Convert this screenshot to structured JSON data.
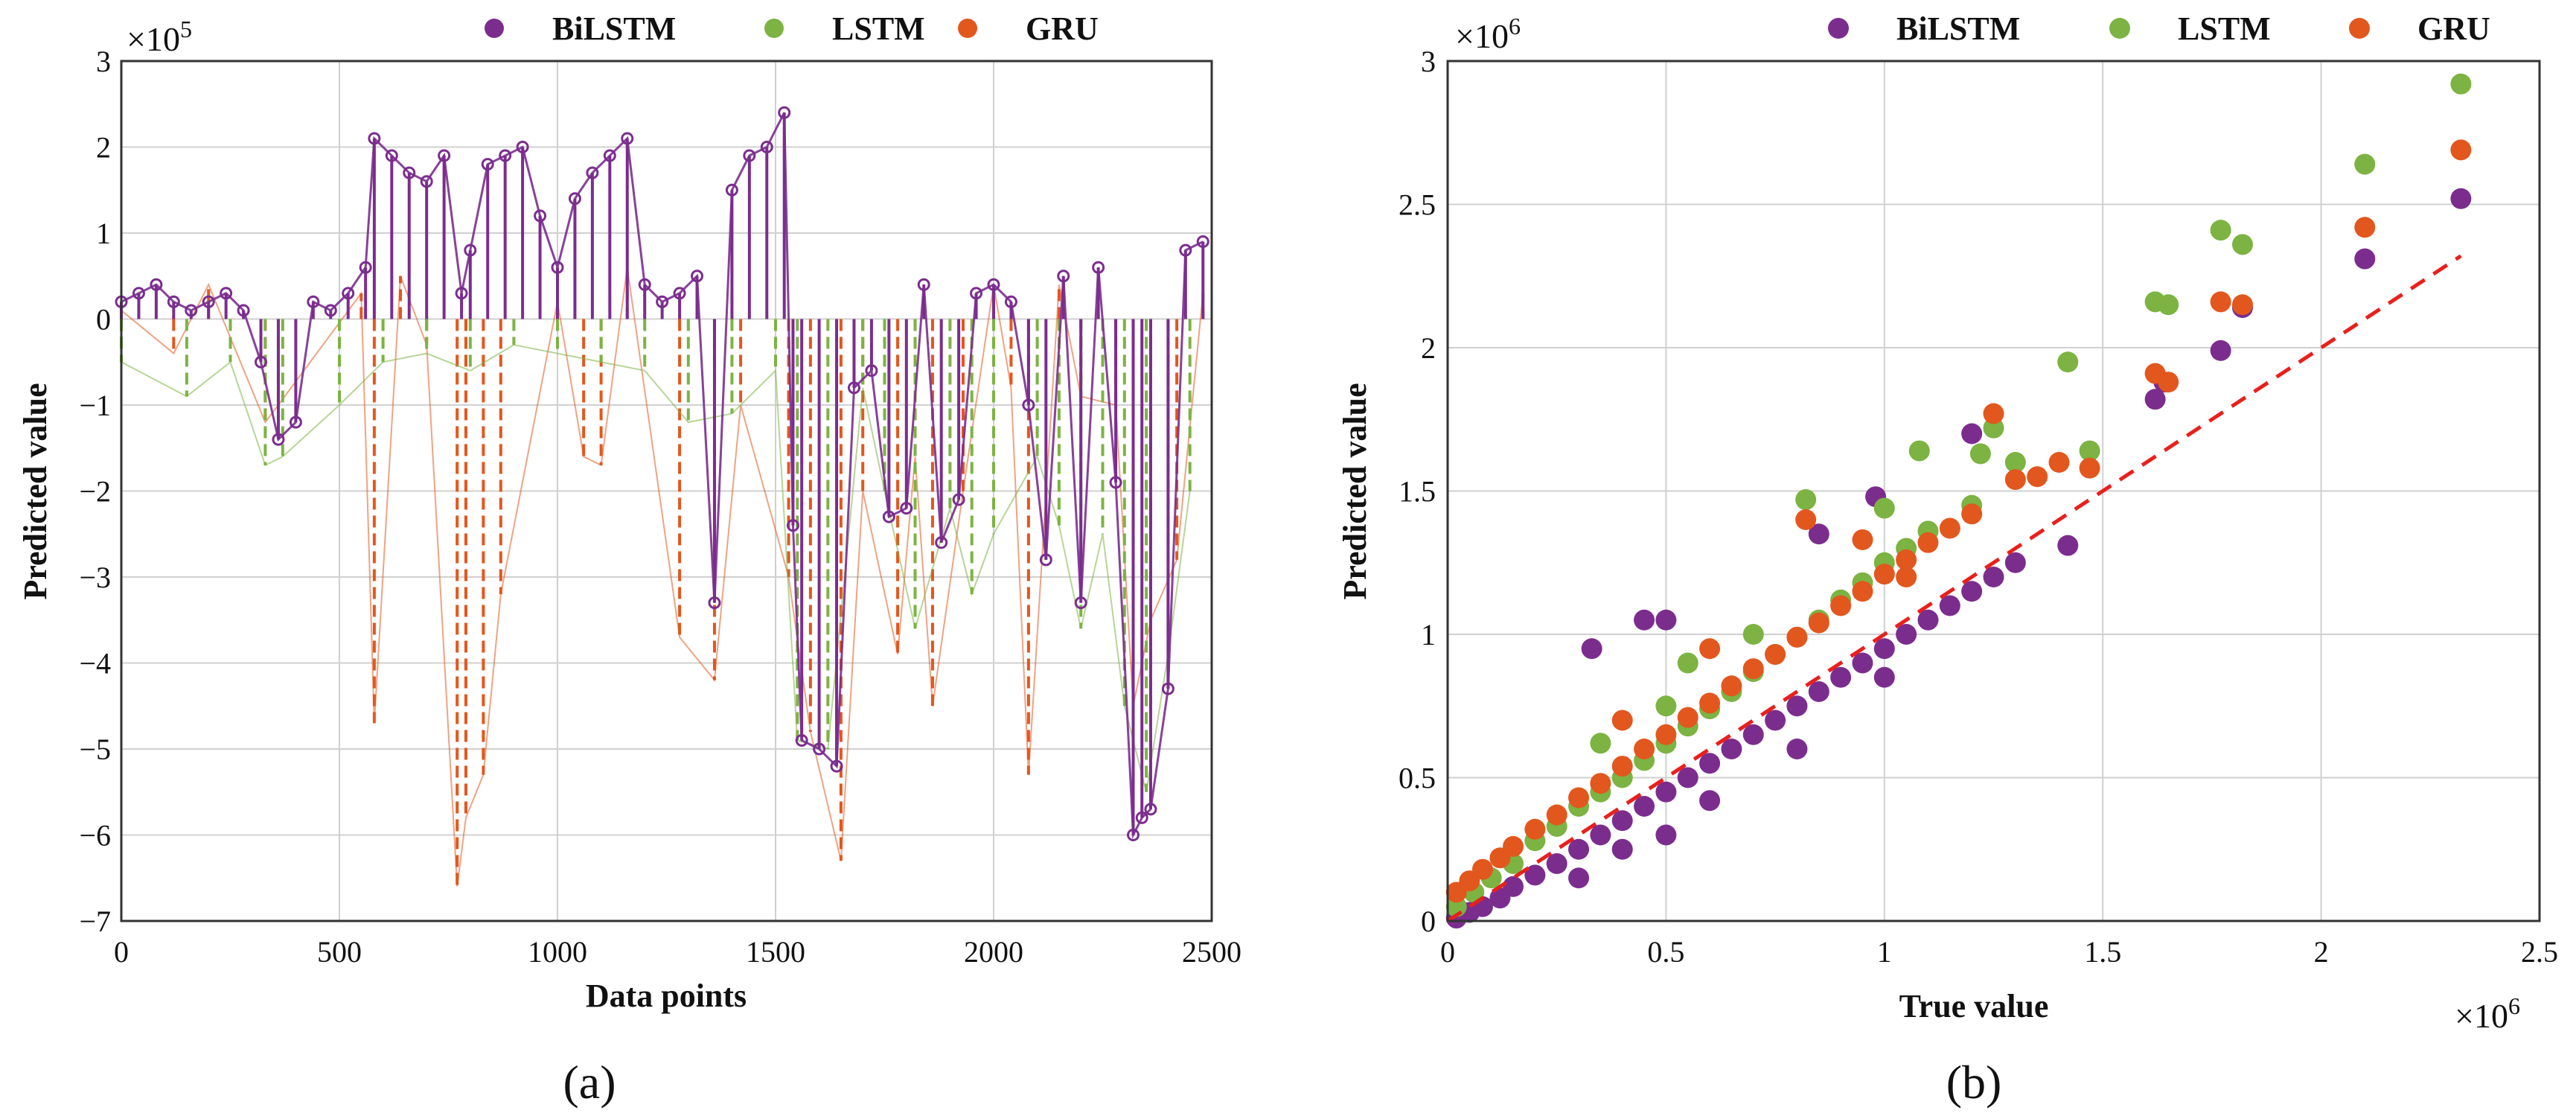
{
  "chart_data": [
    {
      "type": "line",
      "panel_label": "(a)",
      "xlabel": "Data points",
      "ylabel": "Predicted value",
      "y_multiplier_label": "×10",
      "y_multiplier_exp": "5",
      "xlim": [
        0,
        2500
      ],
      "ylim": [
        -7,
        3
      ],
      "xticks": [
        0,
        500,
        1000,
        1500,
        2000,
        2500
      ],
      "yticks": [
        -7,
        -6,
        -5,
        -4,
        -3,
        -2,
        -1,
        0,
        1,
        2,
        3
      ],
      "grid": true,
      "legend_position": "top",
      "series_order": [
        "GRU",
        "LSTM",
        "BiLSTM"
      ],
      "series": [
        {
          "name": "GRU",
          "color": "#E2571E",
          "style": "dashed stems",
          "x": [
            0,
            120,
            200,
            330,
            360,
            550,
            580,
            640,
            700,
            770,
            790,
            830,
            870,
            1000,
            1060,
            1100,
            1160,
            1280,
            1360,
            1420,
            1530,
            1580,
            1650,
            1700,
            1780,
            1820,
            1860,
            1930,
            2000,
            2040,
            2080,
            2150,
            2200,
            2280,
            2320,
            2360,
            2420,
            2480
          ],
          "values": [
            0.1,
            -0.4,
            0.4,
            -1.2,
            -1.0,
            0.3,
            -4.7,
            0.5,
            -0.3,
            -6.6,
            -5.8,
            -5.3,
            -3.2,
            0.2,
            -1.6,
            -1.7,
            0.6,
            -3.7,
            -4.2,
            -1.0,
            -3.0,
            -4.8,
            -6.3,
            -2.0,
            -3.9,
            -1.6,
            -4.5,
            -2.0,
            0.4,
            -0.8,
            -5.3,
            0.4,
            -0.9,
            -1.0,
            -4.5,
            -3.5,
            -2.8,
            0.3
          ]
        },
        {
          "name": "LSTM",
          "color": "#7CB342",
          "style": "dashed stems",
          "x": [
            0,
            150,
            250,
            330,
            370,
            500,
            600,
            700,
            800,
            900,
            1000,
            1100,
            1200,
            1300,
            1400,
            1500,
            1550,
            1620,
            1700,
            1750,
            1820,
            1900,
            1950,
            2000,
            2100,
            2150,
            2200,
            2250,
            2300,
            2350,
            2400,
            2450
          ],
          "values": [
            -0.5,
            -0.9,
            -0.5,
            -1.7,
            -1.6,
            -1.0,
            -0.5,
            -0.4,
            -0.6,
            -0.3,
            -0.4,
            -0.5,
            -0.6,
            -1.2,
            -1.1,
            -0.6,
            -4.9,
            -5.0,
            -0.8,
            -2.0,
            -3.6,
            -2.2,
            -3.2,
            -2.5,
            -1.6,
            -2.4,
            -3.6,
            -2.5,
            -4.5,
            -5.5,
            -3.9,
            -2.0
          ]
        },
        {
          "name": "BiLSTM",
          "color": "#7B2D8E",
          "style": "stems with circle markers",
          "x": [
            0,
            40,
            80,
            120,
            160,
            200,
            240,
            280,
            320,
            360,
            400,
            440,
            480,
            520,
            560,
            580,
            620,
            660,
            700,
            740,
            780,
            800,
            840,
            880,
            920,
            960,
            1000,
            1040,
            1080,
            1120,
            1160,
            1200,
            1240,
            1280,
            1320,
            1360,
            1400,
            1440,
            1480,
            1520,
            1540,
            1560,
            1600,
            1640,
            1680,
            1720,
            1760,
            1800,
            1840,
            1880,
            1920,
            1960,
            2000,
            2040,
            2080,
            2120,
            2160,
            2200,
            2240,
            2280,
            2320,
            2340,
            2360,
            2400,
            2440,
            2480
          ],
          "values": [
            0.2,
            0.3,
            0.4,
            0.2,
            0.1,
            0.2,
            0.3,
            0.1,
            -0.5,
            -1.4,
            -1.2,
            0.2,
            0.1,
            0.3,
            0.6,
            2.1,
            1.9,
            1.7,
            1.6,
            1.9,
            0.3,
            0.8,
            1.8,
            1.9,
            2.0,
            1.2,
            0.6,
            1.4,
            1.7,
            1.9,
            2.1,
            0.4,
            0.2,
            0.3,
            0.5,
            -3.3,
            1.5,
            1.9,
            2.0,
            2.4,
            -2.4,
            -4.9,
            -5.0,
            -5.2,
            -0.8,
            -0.6,
            -2.3,
            -2.2,
            0.4,
            -2.6,
            -2.1,
            0.3,
            0.4,
            0.2,
            -1.0,
            -2.8,
            0.5,
            -3.3,
            0.6,
            -1.9,
            -6.0,
            -5.8,
            -5.7,
            -4.3,
            0.8,
            0.9
          ]
        }
      ]
    },
    {
      "type": "scatter",
      "panel_label": "(b)",
      "xlabel": "True value",
      "ylabel": "Predicted value",
      "x_multiplier_label": "×10",
      "x_multiplier_exp": "6",
      "y_multiplier_label": "×10",
      "y_multiplier_exp": "6",
      "xlim": [
        0,
        2.5
      ],
      "ylim": [
        0,
        3
      ],
      "xticks": [
        0,
        0.5,
        1,
        1.5,
        2,
        2.5
      ],
      "yticks": [
        0,
        0.5,
        1,
        1.5,
        2,
        2.5,
        3
      ],
      "grid": true,
      "legend_position": "top",
      "reference_line": {
        "type": "y = x",
        "style": "dashed",
        "color": "#E8201C",
        "range": [
          0,
          2.32
        ]
      },
      "series": [
        {
          "name": "BiLSTM",
          "color": "#7B2D8E",
          "points": [
            [
              0.02,
              0.01
            ],
            [
              0.05,
              0.03
            ],
            [
              0.08,
              0.05
            ],
            [
              0.12,
              0.08
            ],
            [
              0.15,
              0.12
            ],
            [
              0.2,
              0.16
            ],
            [
              0.25,
              0.2
            ],
            [
              0.3,
              0.25
            ],
            [
              0.35,
              0.3
            ],
            [
              0.4,
              0.35
            ],
            [
              0.45,
              0.4
            ],
            [
              0.5,
              0.45
            ],
            [
              0.55,
              0.5
            ],
            [
              0.6,
              0.55
            ],
            [
              0.65,
              0.6
            ],
            [
              0.7,
              0.65
            ],
            [
              0.75,
              0.7
            ],
            [
              0.8,
              0.75
            ],
            [
              0.85,
              0.8
            ],
            [
              0.9,
              0.85
            ],
            [
              0.95,
              0.9
            ],
            [
              1.0,
              0.95
            ],
            [
              1.05,
              1.0
            ],
            [
              1.1,
              1.05
            ],
            [
              1.15,
              1.1
            ],
            [
              1.2,
              1.15
            ],
            [
              1.25,
              1.2
            ],
            [
              1.3,
              1.25
            ],
            [
              0.33,
              0.95
            ],
            [
              0.45,
              1.05
            ],
            [
              0.5,
              1.05
            ],
            [
              0.85,
              1.35
            ],
            [
              0.98,
              1.48
            ],
            [
              1.2,
              1.7
            ],
            [
              1.42,
              1.31
            ],
            [
              1.62,
              1.82
            ],
            [
              1.64,
              1.88
            ],
            [
              1.77,
              1.99
            ],
            [
              1.82,
              2.14
            ],
            [
              2.1,
              2.31
            ],
            [
              2.32,
              2.52
            ],
            [
              0.4,
              0.25
            ],
            [
              0.6,
              0.42
            ],
            [
              0.8,
              0.6
            ],
            [
              1.0,
              0.85
            ],
            [
              0.3,
              0.15
            ],
            [
              0.5,
              0.3
            ]
          ]
        },
        {
          "name": "LSTM",
          "color": "#7CB342",
          "points": [
            [
              0.02,
              0.05
            ],
            [
              0.06,
              0.1
            ],
            [
              0.1,
              0.15
            ],
            [
              0.15,
              0.2
            ],
            [
              0.2,
              0.28
            ],
            [
              0.25,
              0.33
            ],
            [
              0.3,
              0.4
            ],
            [
              0.35,
              0.45
            ],
            [
              0.4,
              0.5
            ],
            [
              0.45,
              0.56
            ],
            [
              0.5,
              0.62
            ],
            [
              0.55,
              0.68
            ],
            [
              0.6,
              0.74
            ],
            [
              0.65,
              0.8
            ],
            [
              0.7,
              0.87
            ],
            [
              0.75,
              0.93
            ],
            [
              0.8,
              0.99
            ],
            [
              0.85,
              1.05
            ],
            [
              0.9,
              1.12
            ],
            [
              0.95,
              1.18
            ],
            [
              1.0,
              1.25
            ],
            [
              1.05,
              1.3
            ],
            [
              1.1,
              1.36
            ],
            [
              1.2,
              1.45
            ],
            [
              1.25,
              1.72
            ],
            [
              1.3,
              1.6
            ],
            [
              1.42,
              1.95
            ],
            [
              1.47,
              1.64
            ],
            [
              1.62,
              2.16
            ],
            [
              1.65,
              2.15
            ],
            [
              1.77,
              2.41
            ],
            [
              1.82,
              2.36
            ],
            [
              2.1,
              2.64
            ],
            [
              2.32,
              2.92
            ],
            [
              0.82,
              1.47
            ],
            [
              1.0,
              1.44
            ],
            [
              1.08,
              1.64
            ],
            [
              1.22,
              1.63
            ],
            [
              0.5,
              0.75
            ],
            [
              0.7,
              1.0
            ],
            [
              0.35,
              0.62
            ],
            [
              0.55,
              0.9
            ]
          ]
        },
        {
          "name": "GRU",
          "color": "#E2571E",
          "points": [
            [
              0.02,
              0.1
            ],
            [
              0.05,
              0.14
            ],
            [
              0.08,
              0.18
            ],
            [
              0.12,
              0.22
            ],
            [
              0.15,
              0.26
            ],
            [
              0.2,
              0.32
            ],
            [
              0.25,
              0.37
            ],
            [
              0.3,
              0.43
            ],
            [
              0.35,
              0.48
            ],
            [
              0.4,
              0.54
            ],
            [
              0.45,
              0.6
            ],
            [
              0.5,
              0.65
            ],
            [
              0.55,
              0.71
            ],
            [
              0.6,
              0.76
            ],
            [
              0.65,
              0.82
            ],
            [
              0.7,
              0.88
            ],
            [
              0.75,
              0.93
            ],
            [
              0.8,
              0.99
            ],
            [
              0.85,
              1.04
            ],
            [
              0.9,
              1.1
            ],
            [
              0.95,
              1.15
            ],
            [
              1.0,
              1.21
            ],
            [
              1.05,
              1.26
            ],
            [
              1.1,
              1.32
            ],
            [
              1.15,
              1.37
            ],
            [
              1.2,
              1.42
            ],
            [
              1.25,
              1.77
            ],
            [
              1.3,
              1.54
            ],
            [
              1.35,
              1.55
            ],
            [
              1.4,
              1.6
            ],
            [
              1.47,
              1.58
            ],
            [
              1.62,
              1.91
            ],
            [
              1.65,
              1.88
            ],
            [
              1.77,
              2.16
            ],
            [
              1.82,
              2.15
            ],
            [
              2.1,
              2.42
            ],
            [
              2.32,
              2.69
            ],
            [
              0.82,
              1.4
            ],
            [
              0.95,
              1.33
            ],
            [
              1.05,
              1.2
            ],
            [
              0.6,
              0.95
            ],
            [
              0.4,
              0.7
            ]
          ]
        }
      ]
    }
  ]
}
